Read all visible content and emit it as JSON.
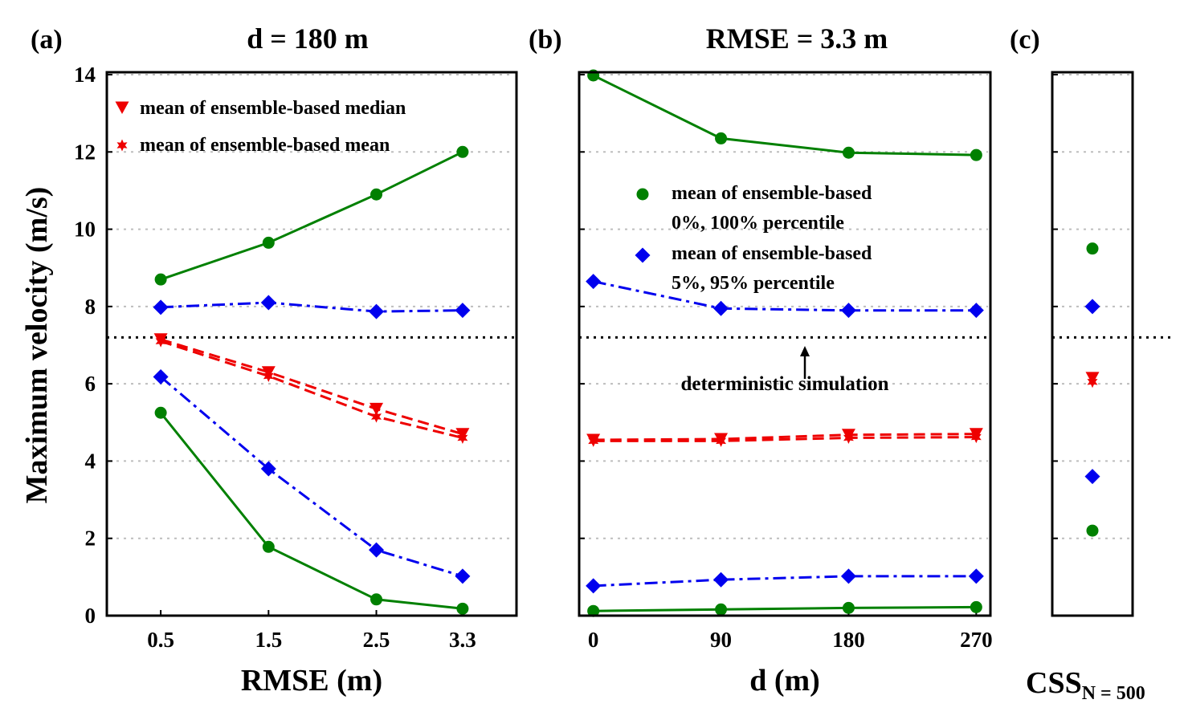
{
  "chart_data": [
    {
      "panel": "(a)",
      "type": "line",
      "title": "d = 180 m",
      "xlabel": "RMSE (m)",
      "ylabel": "Maximum velocity (m/s)",
      "x": [
        0.5,
        1.5,
        2.5,
        3.3
      ],
      "categories": [
        "0.5",
        "1.5",
        "2.5",
        "3.3"
      ],
      "xlim": [
        0,
        3.8
      ],
      "ylim": [
        0,
        14
      ],
      "yticks": [
        "0",
        "2",
        "4",
        "6",
        "8",
        "10",
        "12",
        "14"
      ],
      "grid": "horizontal dotted",
      "reference_line": 7.2,
      "series": [
        {
          "name": "mean of ensemble-based 100% percentile",
          "color": "#008000",
          "style": "solid",
          "marker": "circle",
          "values": [
            8.7,
            9.65,
            10.9,
            12.0
          ]
        },
        {
          "name": "mean of ensemble-based 95% percentile",
          "color": "#0000ee",
          "style": "dashdot",
          "marker": "diamond",
          "values": [
            7.98,
            8.1,
            7.87,
            7.9
          ]
        },
        {
          "name": "mean of ensemble-based median",
          "color": "#ee0000",
          "style": "dashed",
          "marker": "triangle-down",
          "values": [
            7.15,
            6.3,
            5.35,
            4.7
          ]
        },
        {
          "name": "mean of ensemble-based mean",
          "color": "#ee0000",
          "style": "dashed",
          "marker": "star",
          "values": [
            7.1,
            6.2,
            5.15,
            4.6
          ]
        },
        {
          "name": "mean of ensemble-based 5% percentile",
          "color": "#0000ee",
          "style": "dashdot",
          "marker": "diamond",
          "values": [
            6.18,
            3.8,
            1.7,
            1.02
          ]
        },
        {
          "name": "mean of ensemble-based 0% percentile",
          "color": "#008000",
          "style": "solid",
          "marker": "circle",
          "values": [
            5.25,
            1.78,
            0.42,
            0.18
          ]
        }
      ],
      "legend": {
        "position": "top-left",
        "entries": [
          "mean of ensemble-based median",
          "mean of ensemble-based mean"
        ]
      }
    },
    {
      "panel": "(b)",
      "type": "line",
      "title": "RMSE = 3.3 m",
      "xlabel": "d (m)",
      "x": [
        0,
        90,
        180,
        270
      ],
      "categories": [
        "0",
        "90",
        "180",
        "270"
      ],
      "xlim": [
        -10,
        280
      ],
      "ylim": [
        0,
        14
      ],
      "grid": "horizontal dotted",
      "reference_line": 7.2,
      "annotation": "deterministic simulation",
      "series": [
        {
          "name": "mean of ensemble-based 100% percentile",
          "color": "#008000",
          "style": "solid",
          "marker": "circle",
          "values": [
            13.98,
            12.35,
            11.98,
            11.92
          ]
        },
        {
          "name": "mean of ensemble-based 95% percentile",
          "color": "#0000ee",
          "style": "dashdot",
          "marker": "diamond",
          "values": [
            8.65,
            7.95,
            7.9,
            7.9
          ]
        },
        {
          "name": "mean of ensemble-based median",
          "color": "#ee0000",
          "style": "dashed",
          "marker": "triangle-down",
          "values": [
            4.55,
            4.57,
            4.68,
            4.7
          ]
        },
        {
          "name": "mean of ensemble-based mean",
          "color": "#ee0000",
          "style": "dashed",
          "marker": "star",
          "values": [
            4.52,
            4.52,
            4.6,
            4.62
          ]
        },
        {
          "name": "mean of ensemble-based 5% percentile",
          "color": "#0000ee",
          "style": "dashdot",
          "marker": "diamond",
          "values": [
            0.77,
            0.93,
            1.02,
            1.02
          ]
        },
        {
          "name": "mean of ensemble-based 0% percentile",
          "color": "#008000",
          "style": "solid",
          "marker": "circle",
          "values": [
            0.12,
            0.16,
            0.2,
            0.22
          ]
        }
      ],
      "legend": {
        "position": "center-left",
        "entries": [
          {
            "marker": "circle",
            "color": "#008000",
            "lines": [
              "mean of ensemble-based",
              "0%, 100% percentile"
            ]
          },
          {
            "marker": "diamond",
            "color": "#0000ee",
            "lines": [
              "mean of ensemble-based",
              "5%, 95% percentile"
            ]
          }
        ]
      }
    },
    {
      "panel": "(c)",
      "type": "scatter",
      "xlabel_main": "CSS",
      "xlabel_sub": "N = 500",
      "ylim": [
        0,
        14
      ],
      "grid": "horizontal dotted",
      "reference_line": 7.2,
      "points": [
        {
          "name": "100% percentile",
          "marker": "circle",
          "color": "#008000",
          "value": 9.5
        },
        {
          "name": "95% percentile",
          "marker": "diamond",
          "color": "#0000ee",
          "value": 8.0
        },
        {
          "name": "median",
          "marker": "triangle-down",
          "color": "#ee0000",
          "value": 6.15
        },
        {
          "name": "mean",
          "marker": "star",
          "color": "#ee0000",
          "value": 6.05
        },
        {
          "name": "5% percentile",
          "marker": "diamond",
          "color": "#0000ee",
          "value": 3.6
        },
        {
          "name": "0% percentile",
          "marker": "circle",
          "color": "#008000",
          "value": 2.2
        }
      ]
    }
  ]
}
